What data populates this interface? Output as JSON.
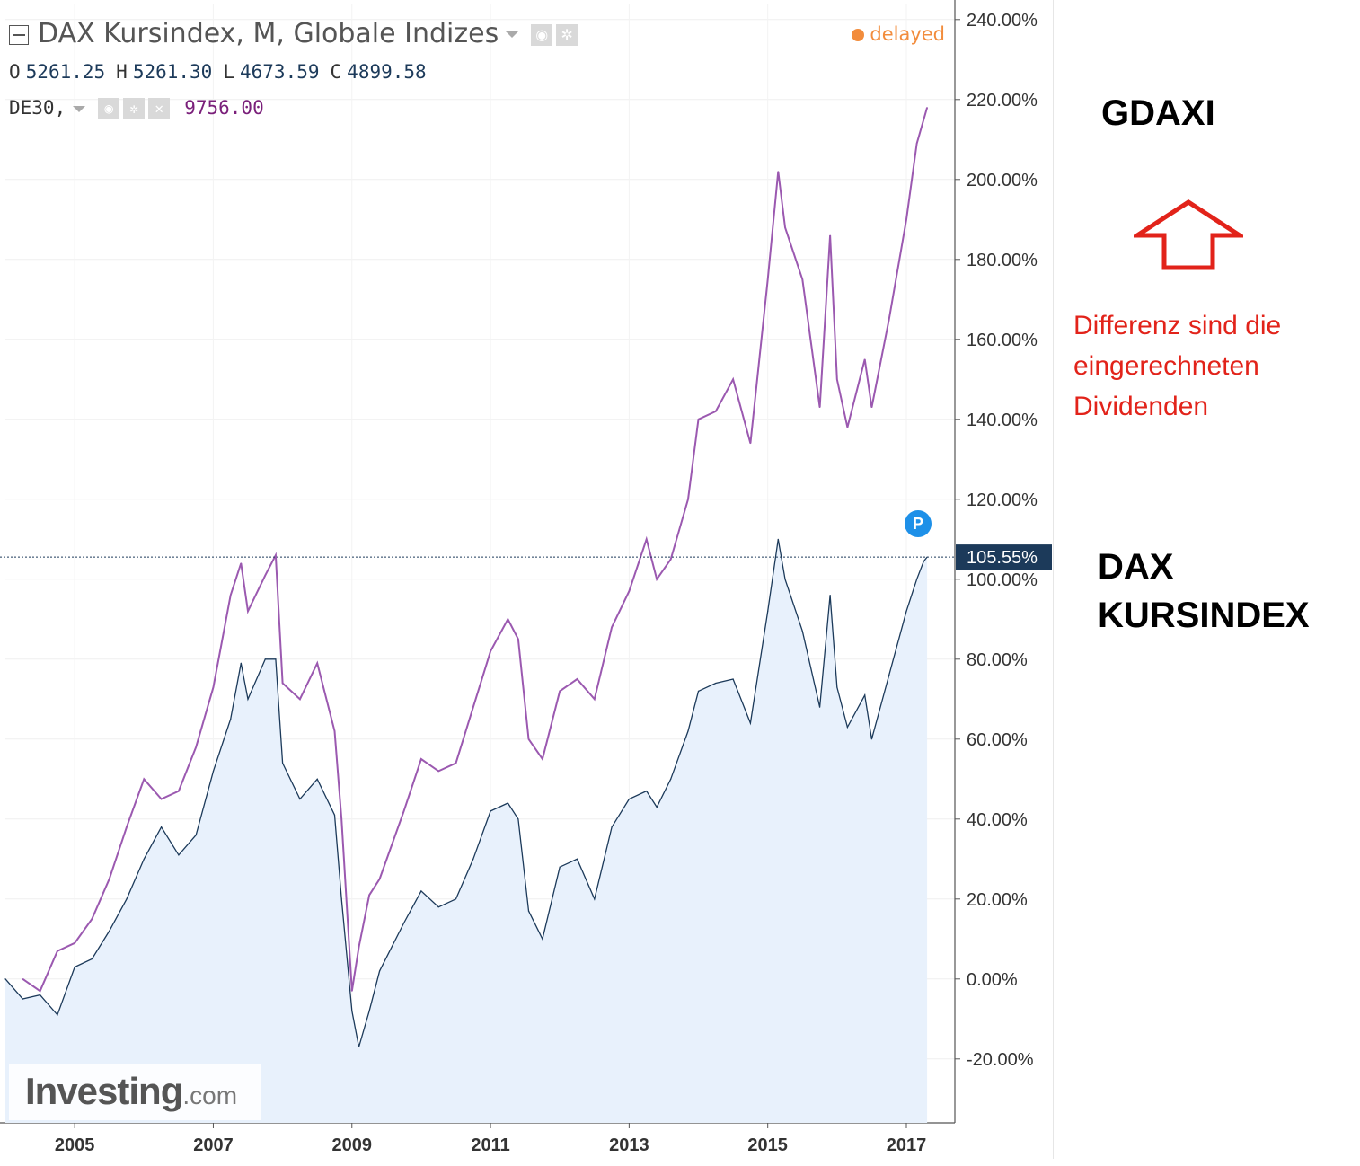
{
  "header": {
    "title": "DAX Kursindex, M, Globale Indizes",
    "status": "delayed",
    "ohlc": [
      {
        "key": "O",
        "value": "5261.25"
      },
      {
        "key": "H",
        "value": "5261.30"
      },
      {
        "key": "L",
        "value": "4673.59"
      },
      {
        "key": "C",
        "value": "4899.58"
      }
    ],
    "comparison_symbol": "DE30,",
    "comparison_value": "9756.00"
  },
  "annotations": {
    "top_label": "GDAXI",
    "note_lines": [
      "Differenz sind die",
      "eingerechneten",
      "Dividenden"
    ],
    "bottom_label_lines": [
      "DAX",
      "KURSINDEX"
    ]
  },
  "price_tag": "105.55%",
  "marker_badge": "P",
  "logo": {
    "main": "Investing",
    "suffix": ".com"
  },
  "colors": {
    "dax_line": "#1c3a5a",
    "dax_fill": "#e8f1fc",
    "gdaxi_line": "#9b59b0",
    "annotation_red": "#e2231a",
    "price_tag_bg": "#1c3a5a",
    "delayed": "#f28c3c"
  },
  "chart_data": {
    "type": "line",
    "x_ticks": [
      "2005",
      "2007",
      "2009",
      "2011",
      "2013",
      "2015",
      "2017"
    ],
    "y_ticks": [
      "240.00%",
      "220.00%",
      "200.00%",
      "180.00%",
      "160.00%",
      "140.00%",
      "120.00%",
      "100.00%",
      "80.00%",
      "60.00%",
      "40.00%",
      "20.00%",
      "0.00%",
      "-20.00%"
    ],
    "ylim": [
      -36,
      244
    ],
    "xlim": [
      2004.0,
      2017.7
    ],
    "grid": true,
    "series": [
      {
        "name": "DAX Kursindex",
        "style": "area",
        "points": [
          [
            2004.0,
            0
          ],
          [
            2004.25,
            -5
          ],
          [
            2004.5,
            -4
          ],
          [
            2004.75,
            -9
          ],
          [
            2005.0,
            3
          ],
          [
            2005.25,
            5
          ],
          [
            2005.5,
            12
          ],
          [
            2005.75,
            20
          ],
          [
            2006.0,
            30
          ],
          [
            2006.25,
            38
          ],
          [
            2006.5,
            31
          ],
          [
            2006.75,
            36
          ],
          [
            2007.0,
            52
          ],
          [
            2007.25,
            65
          ],
          [
            2007.4,
            79
          ],
          [
            2007.5,
            70
          ],
          [
            2007.75,
            80
          ],
          [
            2007.9,
            80
          ],
          [
            2008.0,
            54
          ],
          [
            2008.25,
            45
          ],
          [
            2008.5,
            50
          ],
          [
            2008.75,
            41
          ],
          [
            2008.85,
            20
          ],
          [
            2009.0,
            -8
          ],
          [
            2009.1,
            -17
          ],
          [
            2009.25,
            -8
          ],
          [
            2009.4,
            2
          ],
          [
            2009.75,
            14
          ],
          [
            2010.0,
            22
          ],
          [
            2010.25,
            18
          ],
          [
            2010.5,
            20
          ],
          [
            2010.75,
            30
          ],
          [
            2011.0,
            42
          ],
          [
            2011.25,
            44
          ],
          [
            2011.4,
            40
          ],
          [
            2011.55,
            17
          ],
          [
            2011.75,
            10
          ],
          [
            2012.0,
            28
          ],
          [
            2012.25,
            30
          ],
          [
            2012.5,
            20
          ],
          [
            2012.75,
            38
          ],
          [
            2013.0,
            45
          ],
          [
            2013.25,
            47
          ],
          [
            2013.4,
            43
          ],
          [
            2013.6,
            50
          ],
          [
            2013.85,
            62
          ],
          [
            2014.0,
            72
          ],
          [
            2014.25,
            74
          ],
          [
            2014.5,
            75
          ],
          [
            2014.75,
            64
          ],
          [
            2015.0,
            92
          ],
          [
            2015.15,
            110
          ],
          [
            2015.25,
            100
          ],
          [
            2015.5,
            87
          ],
          [
            2015.75,
            68
          ],
          [
            2015.9,
            96
          ],
          [
            2016.0,
            73
          ],
          [
            2016.15,
            63
          ],
          [
            2016.4,
            71
          ],
          [
            2016.5,
            60
          ],
          [
            2016.75,
            76
          ],
          [
            2017.0,
            92
          ],
          [
            2017.15,
            100
          ],
          [
            2017.25,
            104.5
          ],
          [
            2017.3,
            105.55
          ]
        ]
      },
      {
        "name": "DE30",
        "style": "line",
        "points": [
          [
            2004.25,
            0
          ],
          [
            2004.5,
            -3
          ],
          [
            2004.75,
            7
          ],
          [
            2005.0,
            9
          ],
          [
            2005.25,
            15
          ],
          [
            2005.5,
            25
          ],
          [
            2005.75,
            38
          ],
          [
            2006.0,
            50
          ],
          [
            2006.25,
            45
          ],
          [
            2006.5,
            47
          ],
          [
            2006.75,
            58
          ],
          [
            2007.0,
            73
          ],
          [
            2007.25,
            96
          ],
          [
            2007.4,
            104
          ],
          [
            2007.5,
            92
          ],
          [
            2007.75,
            101
          ],
          [
            2007.9,
            106
          ],
          [
            2008.0,
            74
          ],
          [
            2008.25,
            70
          ],
          [
            2008.5,
            79
          ],
          [
            2008.75,
            62
          ],
          [
            2008.85,
            40
          ],
          [
            2009.0,
            -3
          ],
          [
            2009.1,
            8
          ],
          [
            2009.25,
            21
          ],
          [
            2009.4,
            25
          ],
          [
            2009.75,
            42
          ],
          [
            2010.0,
            55
          ],
          [
            2010.25,
            52
          ],
          [
            2010.5,
            54
          ],
          [
            2010.75,
            68
          ],
          [
            2011.0,
            82
          ],
          [
            2011.25,
            90
          ],
          [
            2011.4,
            85
          ],
          [
            2011.55,
            60
          ],
          [
            2011.75,
            55
          ],
          [
            2012.0,
            72
          ],
          [
            2012.25,
            75
          ],
          [
            2012.5,
            70
          ],
          [
            2012.75,
            88
          ],
          [
            2013.0,
            97
          ],
          [
            2013.25,
            110
          ],
          [
            2013.4,
            100
          ],
          [
            2013.6,
            105
          ],
          [
            2013.85,
            120
          ],
          [
            2014.0,
            140
          ],
          [
            2014.25,
            142
          ],
          [
            2014.5,
            150
          ],
          [
            2014.75,
            134
          ],
          [
            2015.0,
            175
          ],
          [
            2015.15,
            202
          ],
          [
            2015.25,
            188
          ],
          [
            2015.5,
            175
          ],
          [
            2015.75,
            143
          ],
          [
            2015.9,
            186
          ],
          [
            2016.0,
            150
          ],
          [
            2016.15,
            138
          ],
          [
            2016.4,
            155
          ],
          [
            2016.5,
            143
          ],
          [
            2016.75,
            165
          ],
          [
            2017.0,
            190
          ],
          [
            2017.15,
            209
          ],
          [
            2017.25,
            215
          ],
          [
            2017.3,
            218
          ]
        ]
      }
    ]
  }
}
